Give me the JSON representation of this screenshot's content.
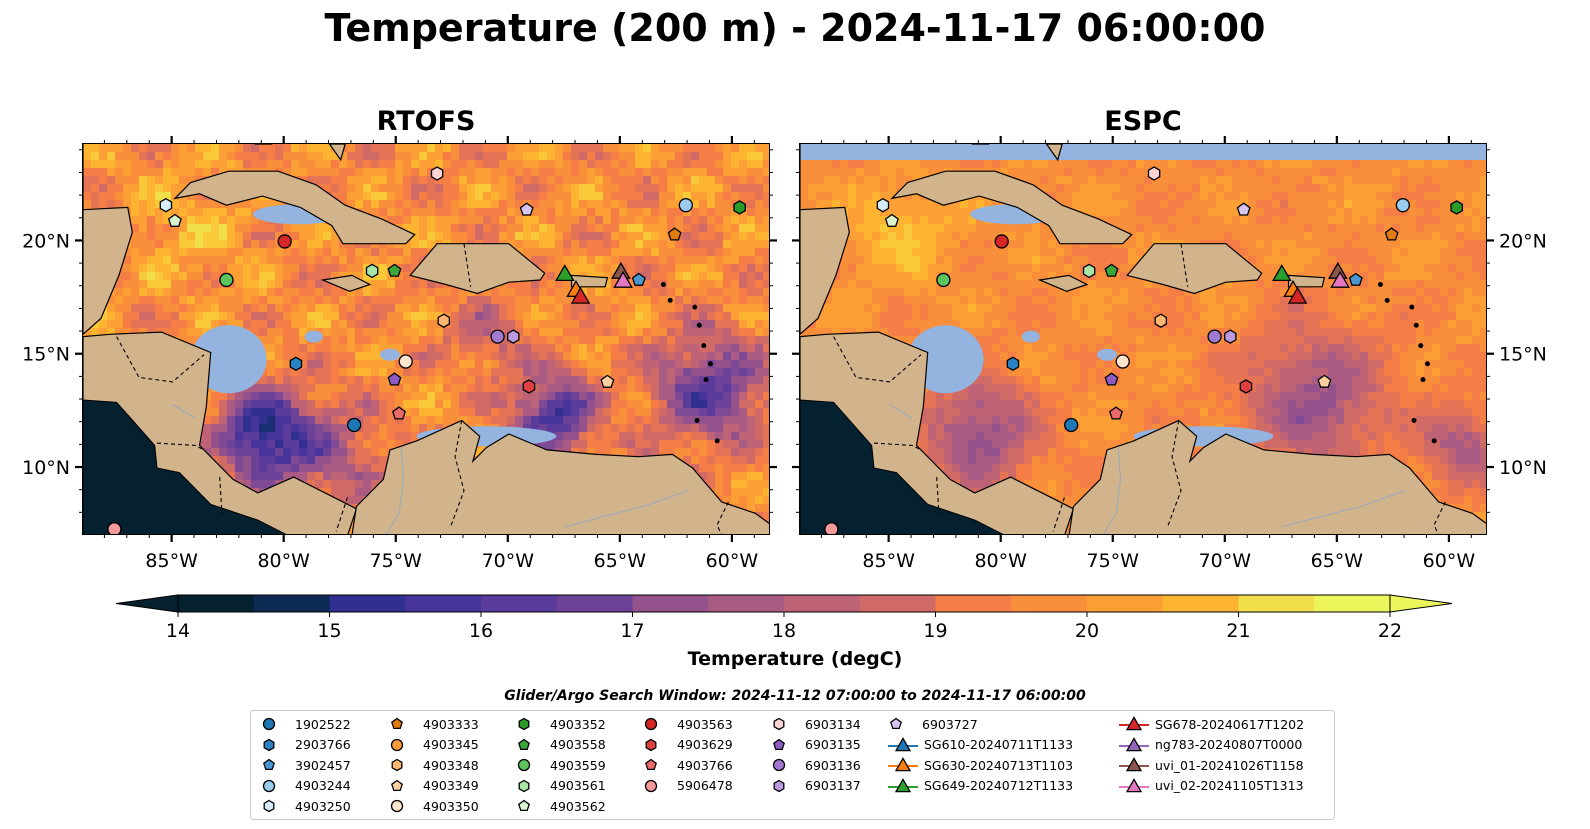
{
  "title": "Temperature (200 m) - 2024-11-17 06:00:00",
  "colors": {
    "land": "#d2b48c",
    "shallow": "#94b3de",
    "deep": "#05202f",
    "palette": [
      "#05202f",
      "#0d2a52",
      "#1a2f74",
      "#312f8f",
      "#47349b",
      "#5a3b9b",
      "#6c4298",
      "#7e4a95",
      "#93528c",
      "#a95b84",
      "#be6276",
      "#d06a66",
      "#e57355",
      "#f47e45",
      "#f98e3b",
      "#fc9f35",
      "#fcb431",
      "#f8ca3a",
      "#f1df4a",
      "#edf55c"
    ]
  },
  "panels": [
    {
      "name": "RTOFS"
    },
    {
      "name": "ESPC"
    }
  ],
  "axes": {
    "x_ticks": [
      "85°W",
      "80°W",
      "75°W",
      "70°W",
      "65°W",
      "60°W"
    ],
    "y_ticks": [
      "20°N",
      "15°N",
      "10°N"
    ]
  },
  "colorbar": {
    "ticks": [
      "14",
      "15",
      "16",
      "17",
      "18",
      "19",
      "20",
      "21",
      "22"
    ],
    "label": "Temperature (degC)",
    "min": 14,
    "max": 22,
    "levels": 16
  },
  "legend": {
    "title": "Glider/Argo Search Window: 2024-11-12 07:00:00 to 2024-11-17 06:00:00",
    "columns": [
      [
        {
          "label": "1902522",
          "marker": "circle",
          "color": "#1f77b4"
        },
        {
          "label": "2903766",
          "marker": "hexagon",
          "color": "#2b83c3"
        },
        {
          "label": "3902457",
          "marker": "pentagon",
          "color": "#4a97d2"
        },
        {
          "label": "4903244",
          "marker": "circle",
          "color": "#9ccbf0"
        },
        {
          "label": "4903250",
          "marker": "hexagon",
          "color": "#d6ebf9"
        }
      ],
      [
        {
          "label": "4903333",
          "marker": "pentagon",
          "color": "#e07b10"
        },
        {
          "label": "4903345",
          "marker": "circle",
          "color": "#ff9c3a"
        },
        {
          "label": "4903348",
          "marker": "hexagon",
          "color": "#ffb66e"
        },
        {
          "label": "4903349",
          "marker": "pentagon",
          "color": "#ffd0a0"
        },
        {
          "label": "4903350",
          "marker": "circle",
          "color": "#ffe6cc"
        }
      ],
      [
        {
          "label": "4903352",
          "marker": "hexagon",
          "color": "#2a9a2a"
        },
        {
          "label": "4903558",
          "marker": "pentagon",
          "color": "#3aa83a"
        },
        {
          "label": "4903559",
          "marker": "circle",
          "color": "#5cc45c"
        },
        {
          "label": "4903561",
          "marker": "hexagon",
          "color": "#a8e6a8"
        },
        {
          "label": "4903562",
          "marker": "pentagon",
          "color": "#d8f5d0"
        }
      ],
      [
        {
          "label": "4903563",
          "marker": "circle",
          "color": "#d62728"
        },
        {
          "label": "4903629",
          "marker": "hexagon",
          "color": "#e04040"
        },
        {
          "label": "4903766",
          "marker": "pentagon",
          "color": "#ea6a6a"
        },
        {
          "label": "5906478",
          "marker": "circle",
          "color": "#f59a9a"
        }
      ],
      [
        {
          "label": "6903134",
          "marker": "hexagon",
          "color": "#fbd5d5"
        },
        {
          "label": "6903135",
          "marker": "pentagon",
          "color": "#8c5cc4"
        },
        {
          "label": "6903136",
          "marker": "circle",
          "color": "#a07ad0"
        },
        {
          "label": "6903137",
          "marker": "hexagon",
          "color": "#bc9ae0"
        }
      ],
      [
        {
          "label": "6903727",
          "marker": "pentagon",
          "color": "#d8c4f0"
        },
        {
          "label": "SG610-20240711T1133",
          "marker": "triangle",
          "color": "#1f77b4"
        },
        {
          "label": "SG630-20240713T1103",
          "marker": "triangle",
          "color": "#ff7f0e"
        },
        {
          "label": "SG649-20240712T1133",
          "marker": "triangle",
          "color": "#2ca02c"
        }
      ],
      [
        {
          "label": "SG678-20240617T1202",
          "marker": "triangle",
          "color": "#d62728"
        },
        {
          "label": "ng783-20240807T0000",
          "marker": "triangle",
          "color": "#9467bd"
        },
        {
          "label": "uvi_01-20241026T1158",
          "marker": "triangle",
          "color": "#8c564b"
        },
        {
          "label": "uvi_02-20241105T1313",
          "marker": "triangle",
          "color": "#e377c2"
        }
      ]
    ]
  },
  "observations": [
    {
      "id": "4903562",
      "lon": -84.9,
      "lat": 20.9
    },
    {
      "id": "4903250",
      "lon": -85.3,
      "lat": 21.6
    },
    {
      "id": "4903563",
      "lon": -80.0,
      "lat": 20.0
    },
    {
      "id": "4903559",
      "lon": -82.6,
      "lat": 18.3
    },
    {
      "id": "4903561",
      "lon": -76.1,
      "lat": 18.7
    },
    {
      "id": "4903558",
      "lon": -75.1,
      "lat": 18.7
    },
    {
      "id": "6903134",
      "lon": -73.2,
      "lat": 23.0
    },
    {
      "id": "6903727",
      "lon": -69.2,
      "lat": 21.4
    },
    {
      "id": "4903244",
      "lon": -62.1,
      "lat": 21.6
    },
    {
      "id": "4903352",
      "lon": -59.7,
      "lat": 21.5
    },
    {
      "id": "4903333",
      "lon": -62.6,
      "lat": 20.3
    },
    {
      "id": "4903629",
      "lon": -69.1,
      "lat": 13.6
    },
    {
      "id": "4903349",
      "lon": -65.6,
      "lat": 13.8
    },
    {
      "id": "6903136",
      "lon": -70.5,
      "lat": 15.8
    },
    {
      "id": "6903137",
      "lon": -69.8,
      "lat": 15.8
    },
    {
      "id": "4903350",
      "lon": -74.6,
      "lat": 14.7
    },
    {
      "id": "6903135",
      "lon": -75.1,
      "lat": 13.9
    },
    {
      "id": "4903766",
      "lon": -74.9,
      "lat": 12.4
    },
    {
      "id": "4903348",
      "lon": -72.9,
      "lat": 16.5
    },
    {
      "id": "2903766",
      "lon": -79.5,
      "lat": 14.6
    },
    {
      "id": "1902522",
      "lon": -76.9,
      "lat": 11.9
    },
    {
      "id": "5906478",
      "lon": -87.6,
      "lat": 7.3
    },
    {
      "id": "3902457",
      "lon": -64.2,
      "lat": 18.3
    },
    {
      "id": "SG649-20240712T1133",
      "lon": -67.5,
      "lat": 18.5
    },
    {
      "id": "uvi_01-20241026T1158",
      "lon": -65.0,
      "lat": 18.6
    },
    {
      "id": "SG630-20240713T1103",
      "lon": -67.0,
      "lat": 17.8
    },
    {
      "id": "SG678-20240617T1202",
      "lon": -66.8,
      "lat": 17.5
    },
    {
      "id": "uvi_02-20241105T1313",
      "lon": -64.9,
      "lat": 18.2
    }
  ]
}
